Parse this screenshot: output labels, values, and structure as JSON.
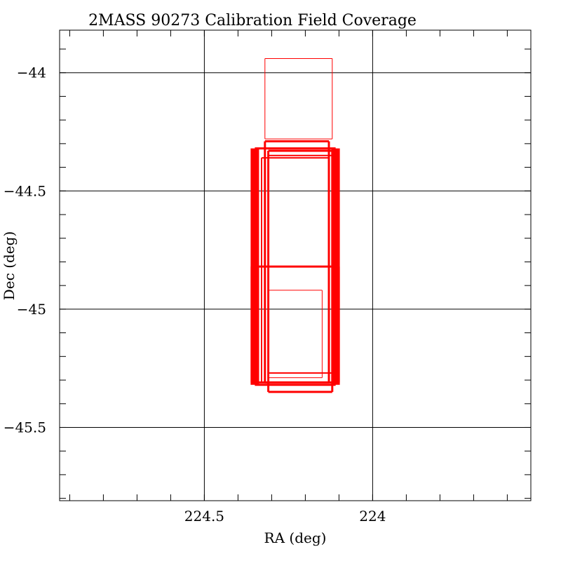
{
  "chart_data": {
    "type": "rectangle-coverage",
    "title": "2MASS 90273 Calibration Field Coverage",
    "xlabel": "RA (deg)",
    "ylabel": "Dec (deg)",
    "xlim": [
      224.93,
      223.53
    ],
    "ylim": [
      -45.81,
      -43.82
    ],
    "x_major_ticks": [
      224,
      224.5
    ],
    "x_tick_labels": [
      "224",
      "224.5"
    ],
    "x_minor_step": 0.1,
    "y_major_ticks": [
      -44,
      -44.5,
      -45,
      -45.5
    ],
    "y_tick_labels": [
      "−44",
      "−44.5",
      "−45",
      "−45.5"
    ],
    "y_minor_step": 0.1,
    "grid": true,
    "colors": {
      "rect": "#ff0000",
      "axes": "#000000"
    },
    "rectangles": [
      {
        "ra": [
          224.12,
          224.32
        ],
        "dec": [
          -44.28,
          -43.94
        ],
        "weight": 1
      },
      {
        "ra": [
          224.13,
          224.32
        ],
        "dec": [
          -45.31,
          -44.29
        ],
        "weight": 3
      },
      {
        "ra": [
          224.12,
          224.31
        ],
        "dec": [
          -45.35,
          -44.33
        ],
        "weight": 3
      },
      {
        "ra": [
          224.13,
          224.33
        ],
        "dec": [
          -45.31,
          -44.36
        ],
        "weight": 2
      },
      {
        "ra": [
          224.11,
          224.35
        ],
        "dec": [
          -45.31,
          -44.32
        ],
        "weight": 12
      },
      {
        "ra": [
          224.11,
          224.35
        ],
        "dec": [
          -45.32,
          -44.82
        ],
        "weight": 12
      },
      {
        "ra": [
          224.15,
          224.31
        ],
        "dec": [
          -45.29,
          -44.92
        ],
        "weight": 1
      },
      {
        "ra": [
          224.12,
          224.31
        ],
        "dec": [
          -45.27,
          -44.35
        ],
        "weight": 2
      }
    ]
  }
}
